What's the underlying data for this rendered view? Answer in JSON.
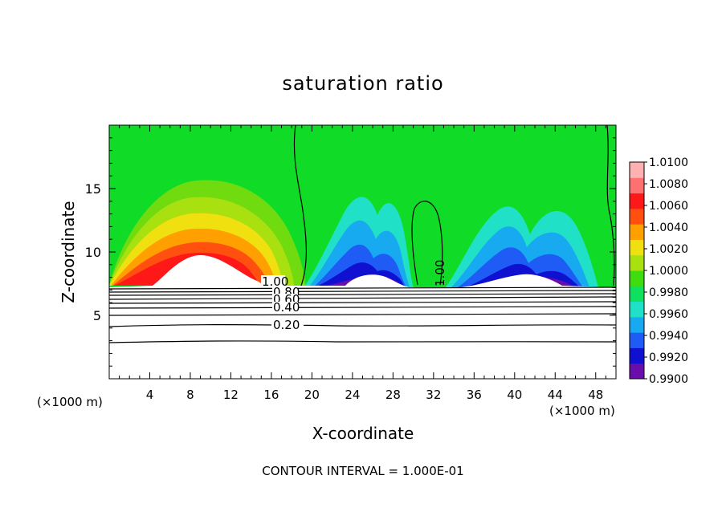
{
  "chart_data": {
    "type": "heatmap",
    "title": "saturation ratio",
    "xlabel": "X-coordinate",
    "ylabel": "Z-coordinate",
    "x_unit_left": "(×1000 m)",
    "x_unit_right": "(×1000 m)",
    "footer": "CONTOUR INTERVAL = 1.000E-01",
    "xlim": [
      0,
      50
    ],
    "ylim": [
      0,
      20
    ],
    "x_ticks": [
      4,
      8,
      12,
      16,
      20,
      24,
      28,
      32,
      36,
      40,
      44,
      48
    ],
    "y_ticks": [
      5,
      10,
      15
    ],
    "colorbar": {
      "levels": [
        "0.9900",
        "0.9920",
        "0.9940",
        "0.9960",
        "0.9980",
        "1.0000",
        "1.0020",
        "1.0040",
        "1.0060",
        "1.0080",
        "1.0100"
      ],
      "colors": [
        "#6a0dad",
        "#1010d0",
        "#1e5cf5",
        "#18aaf0",
        "#20e0c8",
        "#10e060",
        "#40dc10",
        "#a8e010",
        "#f0e010",
        "#ffa000",
        "#ff5010",
        "#ff1818",
        "#ff7070",
        "#ffb0b0"
      ]
    },
    "contour_labels": [
      "1.00",
      "0.80",
      "0.60",
      "0.40",
      "0.20",
      "1.00"
    ],
    "contour_levels": [
      0.2,
      0.4,
      0.6,
      0.8,
      1.0
    ]
  }
}
